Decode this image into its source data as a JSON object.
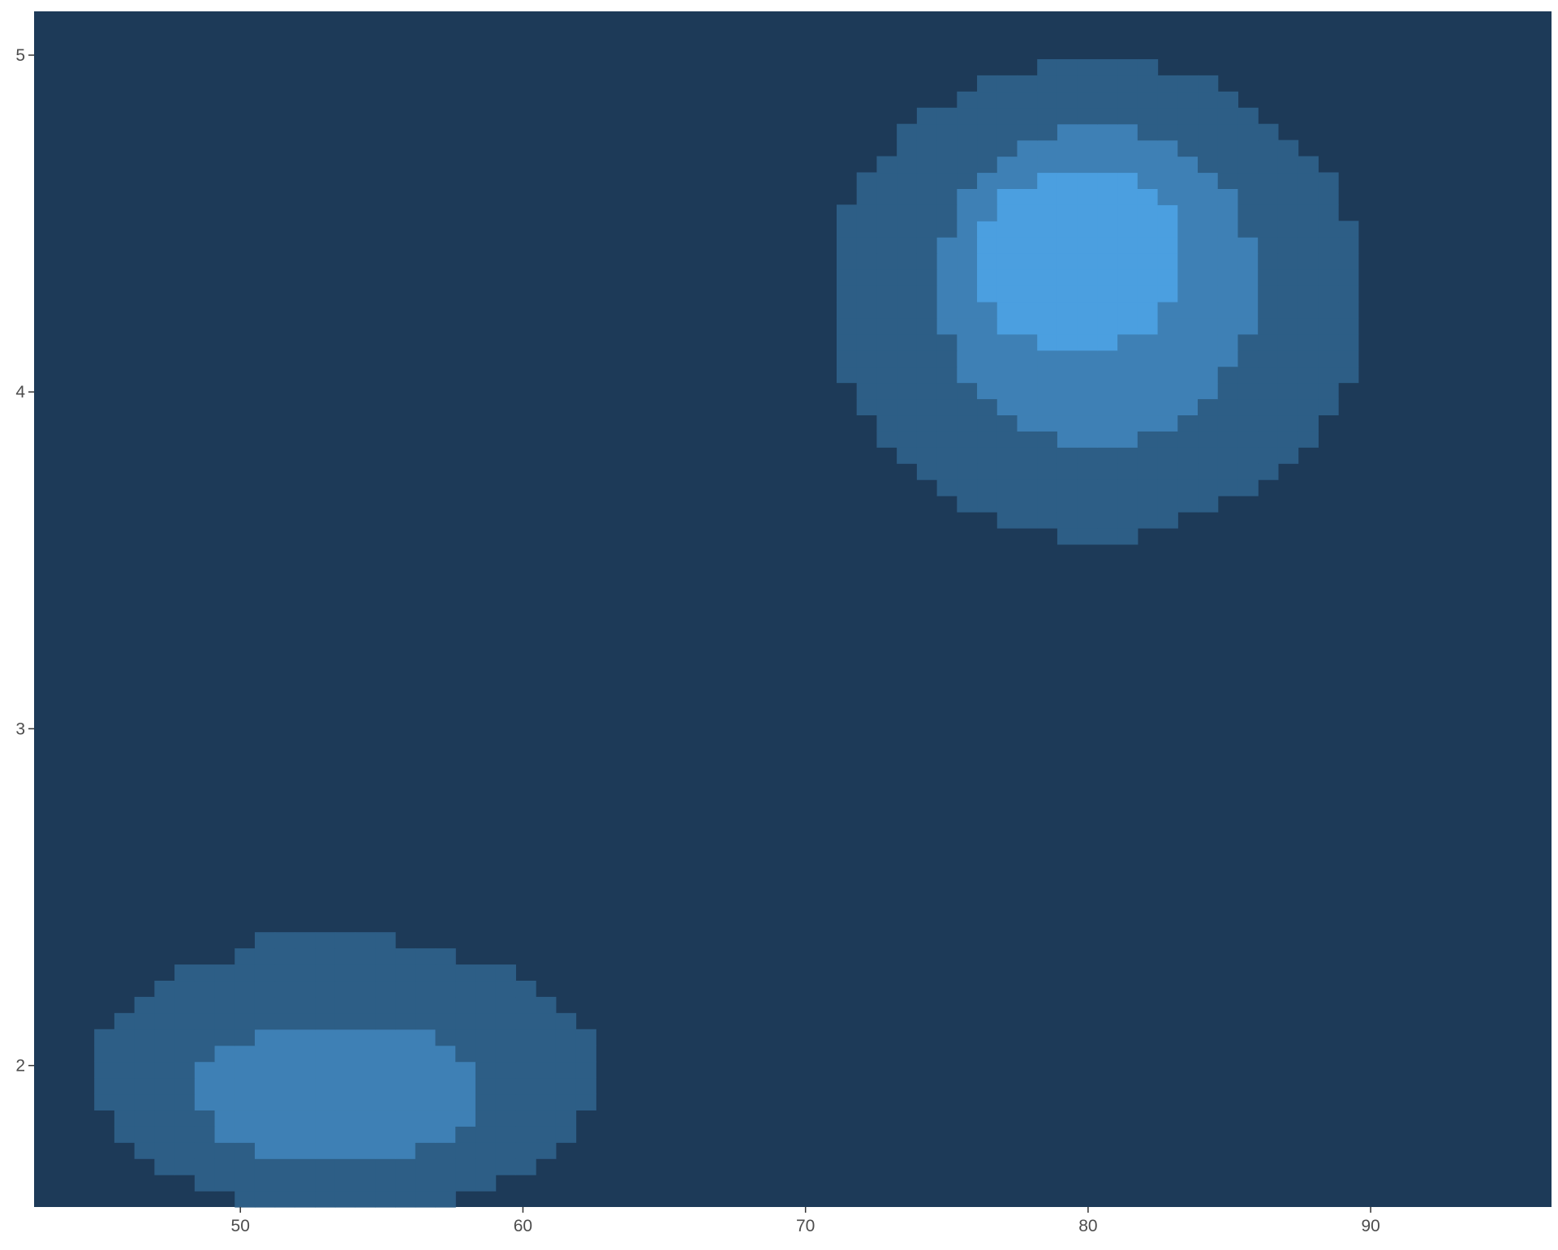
{
  "chart_data": {
    "type": "heatmap",
    "title": "",
    "xlabel": "",
    "ylabel": "",
    "xlim": [
      42.7,
      96.4
    ],
    "ylim": [
      1.58,
      5.13
    ],
    "grid": false,
    "legend": "none",
    "x_ticks": [
      50,
      60,
      70,
      80,
      90
    ],
    "y_ticks": [
      2,
      3,
      4,
      5
    ],
    "x_tick_labels": [
      "50",
      "60",
      "70",
      "80",
      "90"
    ],
    "y_tick_labels": [
      "2",
      "3",
      "4",
      "5"
    ],
    "cell_size": {
      "x": 0.71,
      "y": 0.048
    },
    "colors": {
      "background": "#1d3a58",
      "levels": [
        "#1d3a58",
        "#2d5e86",
        "#3e80b5",
        "#4b9fe0"
      ],
      "tick_text": "#4d4d4d",
      "tick_mark": "#333333"
    },
    "levels": [
      {
        "level": 1,
        "color": "#2d5e86",
        "regions": [
          {
            "cx": 80.3,
            "cy": 4.28,
            "rx": 9.5,
            "ry": 0.7
          },
          {
            "cx": 80.2,
            "cy": 3.68,
            "rx": 3.5,
            "ry": 0.12
          },
          {
            "cx": 53.7,
            "cy": 1.97,
            "rx": 8.9,
            "ry": 0.4
          },
          {
            "cx": 52.9,
            "cy": 2.33,
            "rx": 3.0,
            "ry": 0.09
          }
        ]
      },
      {
        "level": 2,
        "color": "#3e80b5",
        "regions": [
          {
            "cx": 80.3,
            "cy": 4.32,
            "rx": 5.6,
            "ry": 0.47
          },
          {
            "cx": 53.5,
            "cy": 1.92,
            "rx": 5.1,
            "ry": 0.21
          }
        ]
      },
      {
        "level": 3,
        "color": "#4b9fe0",
        "regions": [
          {
            "cx": 79.7,
            "cy": 4.39,
            "rx": 3.7,
            "ry": 0.27
          }
        ]
      }
    ]
  }
}
